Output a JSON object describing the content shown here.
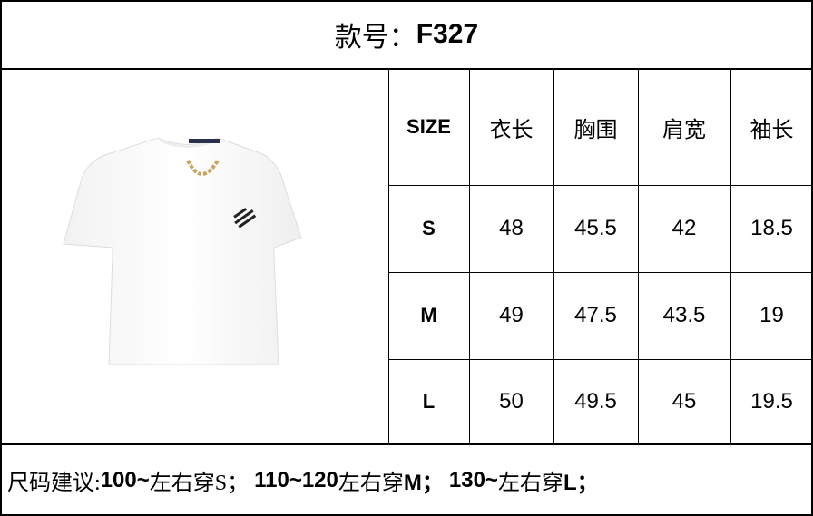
{
  "title": {
    "label": "款号：",
    "code": "F327"
  },
  "table": {
    "headers": [
      "SIZE",
      "衣长",
      "胸围",
      "肩宽",
      "袖长"
    ],
    "rows": [
      [
        "S",
        "48",
        "45.5",
        "42",
        "18.5"
      ],
      [
        "M",
        "49",
        "47.5",
        "43.5",
        "19"
      ],
      [
        "L",
        "50",
        "49.5",
        "45",
        "19.5"
      ]
    ]
  },
  "image": {
    "alt": "white cropped t-shirt with gold chain"
  },
  "footer": {
    "prefix": "尺码建议:",
    "s_range": "100~",
    "s_text": "左右穿S；",
    "m_range": "110~120",
    "m_text": "左右穿",
    "m_size": "M；",
    "l_range": "130~",
    "l_text": "左右穿",
    "l_size": "L；"
  }
}
